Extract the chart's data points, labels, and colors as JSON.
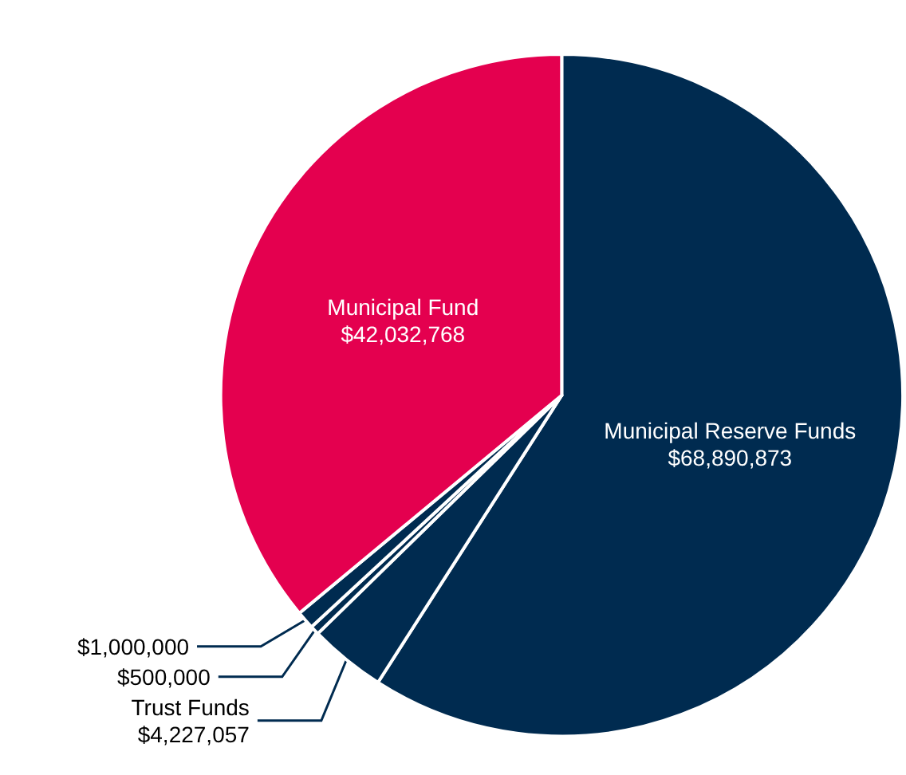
{
  "chart_data": {
    "type": "pie",
    "categories": [
      "Municipal Reserve Funds",
      "Trust Funds",
      null,
      null,
      "Municipal Fund"
    ],
    "values": [
      68890873,
      4227057,
      500000,
      1000000,
      42032768
    ],
    "value_labels": [
      "$68,890,873",
      "$4,227,057",
      "$500,000",
      "$1,000,000",
      "$42,032,768"
    ],
    "colors": [
      "#002b50",
      "#002b50",
      "#002b50",
      "#002b50",
      "#e4004f"
    ],
    "legend": false
  }
}
